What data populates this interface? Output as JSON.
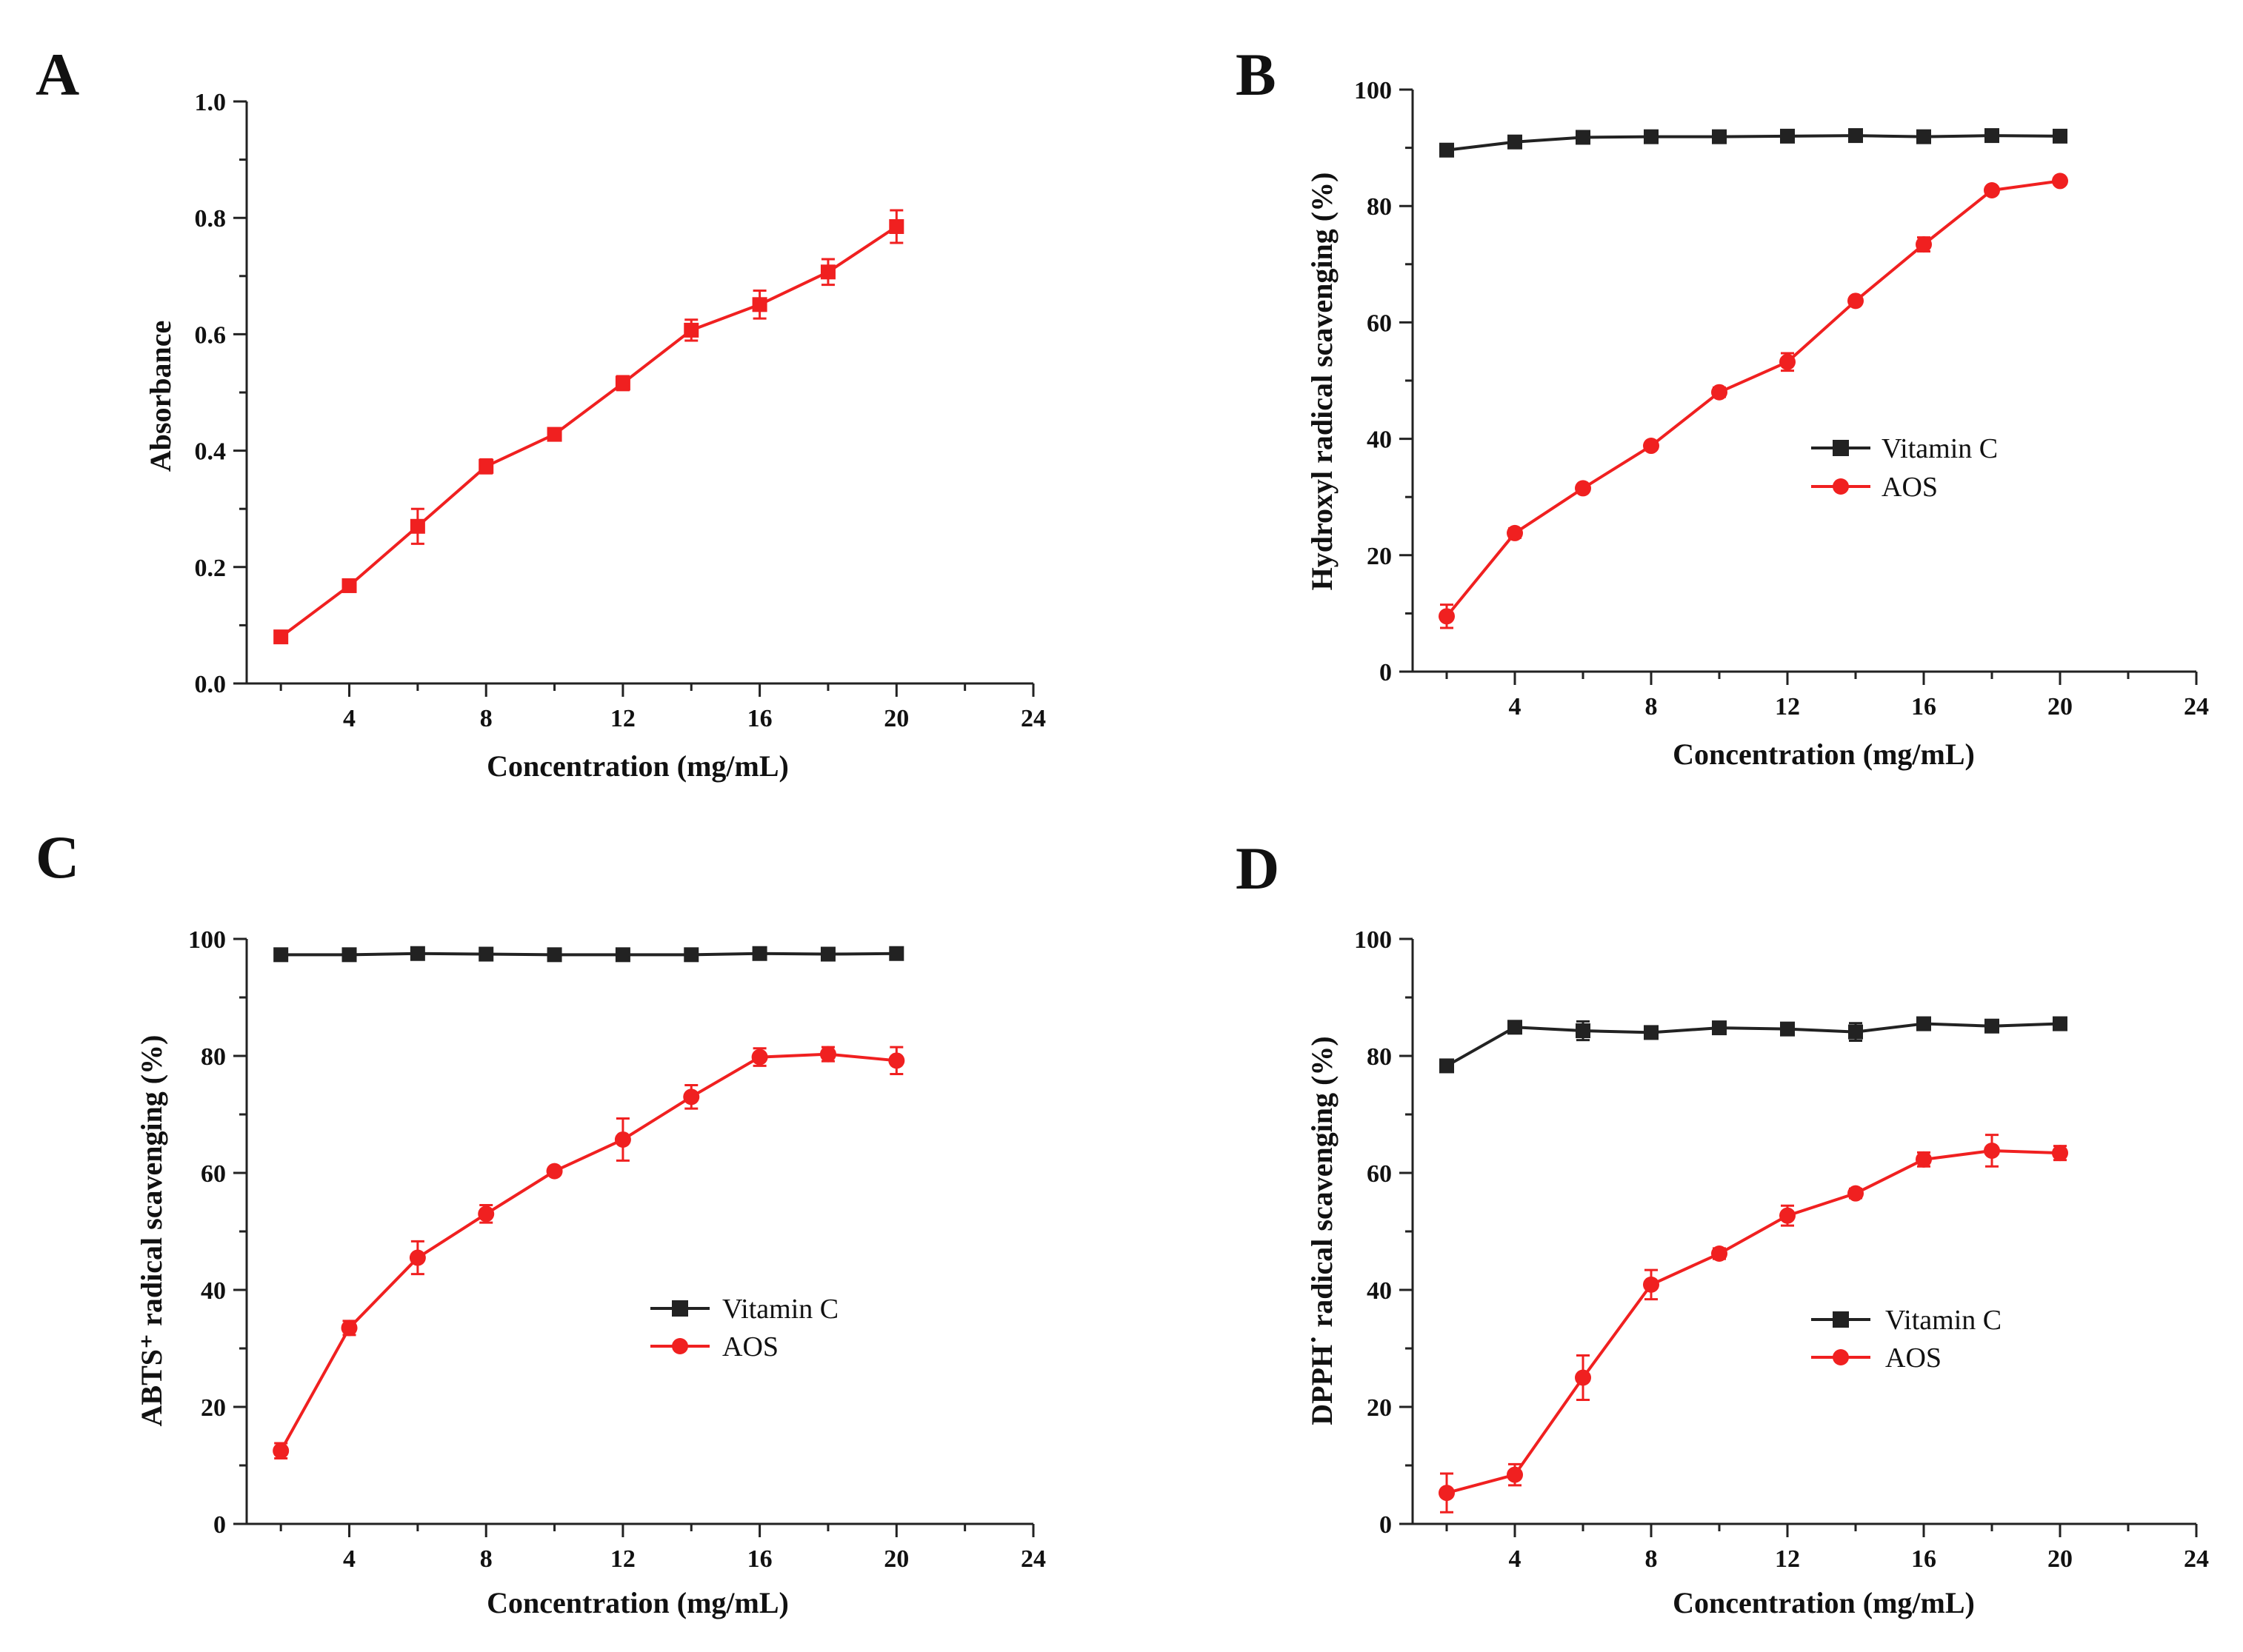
{
  "colors": {
    "vitamin_c": "#222222",
    "aos": "#f02020",
    "axis": "#222222"
  },
  "chart_data": [
    {
      "panel": "A",
      "type": "line",
      "xlabel": "Concentration (mg/mL)",
      "ylabel": "Absorbance",
      "xlim": [
        1,
        24
      ],
      "ylim": [
        0.0,
        1.0
      ],
      "xticks": [
        4,
        8,
        12,
        16,
        20,
        24
      ],
      "yticks": [
        "0.0",
        "0.2",
        "0.4",
        "0.6",
        "0.8",
        "1.0"
      ],
      "legend": "none",
      "grid": false,
      "series": [
        {
          "marker": "square",
          "color": "#f02020",
          "x": [
            2,
            4,
            6,
            8,
            10,
            12,
            14,
            16,
            18,
            20
          ],
          "y": [
            0.08,
            0.168,
            0.27,
            0.373,
            0.428,
            0.516,
            0.607,
            0.651,
            0.707,
            0.785
          ],
          "err": [
            0.005,
            0.01,
            0.03,
            0.012,
            0.006,
            0.012,
            0.018,
            0.024,
            0.022,
            0.028
          ]
        }
      ]
    },
    {
      "panel": "B",
      "type": "line",
      "xlabel": "Concentration (mg/mL)",
      "ylabel": "Hydroxyl radical scavenging (%)",
      "xlim": [
        1,
        24
      ],
      "ylim": [
        0,
        100
      ],
      "xticks": [
        4,
        8,
        12,
        16,
        20,
        24
      ],
      "yticks": [
        "0",
        "20",
        "40",
        "60",
        "80",
        "100"
      ],
      "legend": "center-right",
      "grid": false,
      "series": [
        {
          "name": "Vitamin C",
          "marker": "square",
          "color": "#222222",
          "x": [
            2,
            4,
            6,
            8,
            10,
            12,
            14,
            16,
            18,
            20
          ],
          "y": [
            89.6,
            91.0,
            91.8,
            91.9,
            91.9,
            92.0,
            92.1,
            91.9,
            92.1,
            92.0
          ],
          "err": [
            0.4,
            0.4,
            0.3,
            0.3,
            0.3,
            0.3,
            0.3,
            0.3,
            0.3,
            0.3
          ]
        },
        {
          "name": "AOS",
          "marker": "circle",
          "color": "#f02020",
          "x": [
            2,
            4,
            6,
            8,
            10,
            12,
            14,
            16,
            18,
            20
          ],
          "y": [
            9.5,
            23.8,
            31.5,
            38.8,
            48.0,
            53.2,
            63.7,
            73.4,
            82.7,
            84.3
          ],
          "err": [
            2.0,
            0.8,
            0.6,
            0.6,
            0.8,
            1.5,
            0.6,
            1.2,
            0.6,
            0.6
          ]
        }
      ]
    },
    {
      "panel": "C",
      "type": "line",
      "xlabel": "Concentration (mg/mL)",
      "ylabel": "ABTS⁺ radical scavenging (%)",
      "xlim": [
        1,
        24
      ],
      "ylim": [
        0,
        100
      ],
      "xticks": [
        4,
        8,
        12,
        16,
        20,
        24
      ],
      "yticks": [
        "0",
        "20",
        "40",
        "60",
        "80",
        "100"
      ],
      "legend": "center-right",
      "grid": false,
      "series": [
        {
          "name": "Vitamin C",
          "marker": "square",
          "color": "#222222",
          "x": [
            2,
            4,
            6,
            8,
            10,
            12,
            14,
            16,
            18,
            20
          ],
          "y": [
            97.3,
            97.3,
            97.5,
            97.4,
            97.3,
            97.3,
            97.3,
            97.5,
            97.4,
            97.5
          ],
          "err": [
            0.3,
            0.3,
            0.3,
            0.3,
            0.3,
            0.3,
            0.3,
            0.3,
            0.3,
            0.3
          ]
        },
        {
          "name": "AOS",
          "marker": "circle",
          "color": "#f02020",
          "x": [
            2,
            4,
            6,
            8,
            10,
            12,
            14,
            16,
            18,
            20
          ],
          "y": [
            12.5,
            33.5,
            45.5,
            53.0,
            60.3,
            65.7,
            73.0,
            79.8,
            80.3,
            79.2
          ],
          "err": [
            1.3,
            1.2,
            2.8,
            1.5,
            0.6,
            3.6,
            2.0,
            1.5,
            1.2,
            2.3
          ]
        }
      ]
    },
    {
      "panel": "D",
      "type": "line",
      "xlabel": "Concentration (mg/mL)",
      "ylabel": "DPPH˙ radical scavenging (%)",
      "xlim": [
        1,
        24
      ],
      "ylim": [
        0,
        100
      ],
      "xticks": [
        4,
        8,
        12,
        16,
        20,
        24
      ],
      "yticks": [
        "0",
        "20",
        "40",
        "60",
        "80",
        "100"
      ],
      "legend": "center-right",
      "grid": false,
      "series": [
        {
          "name": "Vitamin C",
          "marker": "square",
          "color": "#222222",
          "x": [
            2,
            4,
            6,
            8,
            10,
            12,
            14,
            16,
            18,
            20
          ],
          "y": [
            78.3,
            84.9,
            84.3,
            84.0,
            84.8,
            84.6,
            84.1,
            85.5,
            85.1,
            85.5
          ],
          "err": [
            0.5,
            0.6,
            1.6,
            0.6,
            0.6,
            0.6,
            1.5,
            0.6,
            0.6,
            0.6
          ]
        },
        {
          "name": "AOS",
          "marker": "circle",
          "color": "#f02020",
          "x": [
            2,
            4,
            6,
            8,
            10,
            12,
            14,
            16,
            18,
            20
          ],
          "y": [
            5.3,
            8.4,
            25.0,
            40.9,
            46.2,
            52.7,
            56.5,
            62.3,
            63.8,
            63.4
          ],
          "err": [
            3.3,
            1.8,
            3.8,
            2.5,
            0.9,
            1.7,
            0.8,
            1.2,
            2.7,
            1.2
          ]
        }
      ]
    }
  ]
}
